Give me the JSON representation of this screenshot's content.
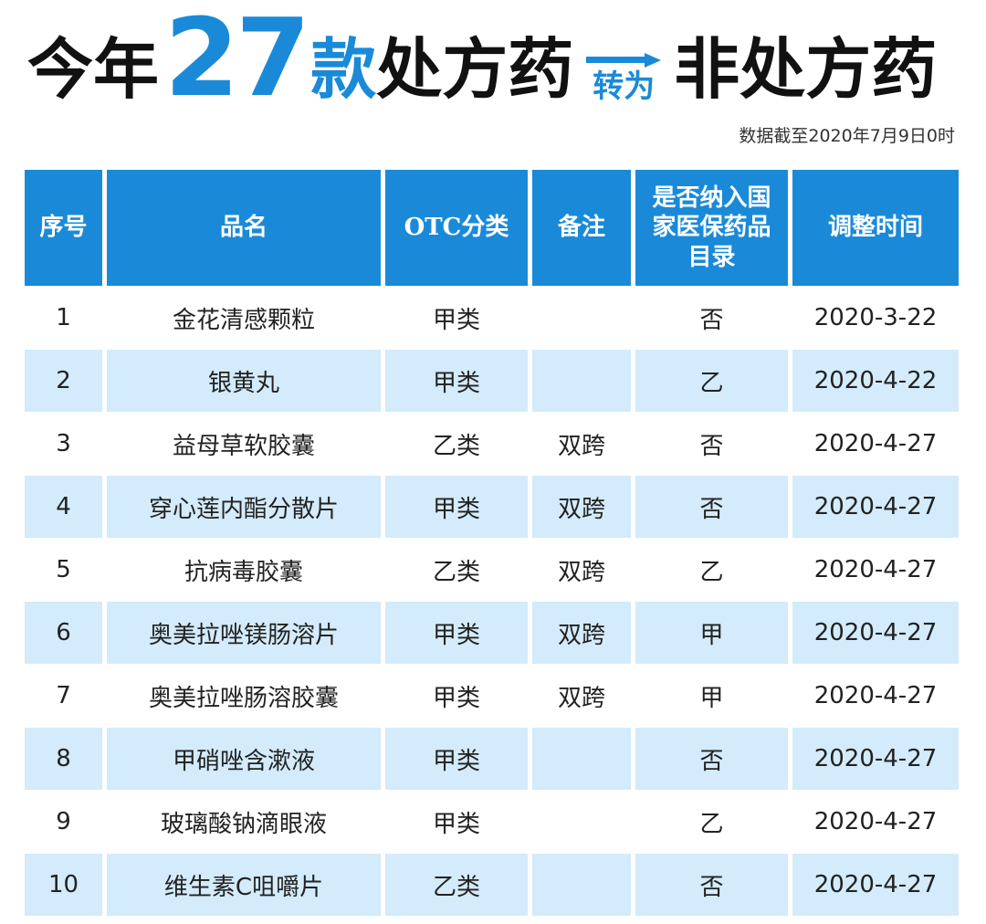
{
  "title": {
    "part1": "今年",
    "number": "27",
    "part2": "款",
    "part3": "处方药",
    "arrow_label": "转为",
    "part4": "非处方药"
  },
  "note": "数据截至2020年7月9日0时",
  "colors": {
    "accent": "#1a8ad8",
    "row_alt": "#d3ebfa"
  },
  "table": {
    "headers": [
      "序号",
      "品名",
      "OTC分类",
      "备注",
      "是否纳入国家医保药品目录",
      "调整时间"
    ],
    "rows": [
      [
        "1",
        "金花清感颗粒",
        "甲类",
        "",
        "否",
        "2020-3-22"
      ],
      [
        "2",
        "银黄丸",
        "甲类",
        "",
        "乙",
        "2020-4-22"
      ],
      [
        "3",
        "益母草软胶囊",
        "乙类",
        "双跨",
        "否",
        "2020-4-27"
      ],
      [
        "4",
        "穿心莲内酯分散片",
        "甲类",
        "双跨",
        "否",
        "2020-4-27"
      ],
      [
        "5",
        "抗病毒胶囊",
        "乙类",
        "双跨",
        "乙",
        "2020-4-27"
      ],
      [
        "6",
        "奥美拉唑镁肠溶片",
        "甲类",
        "双跨",
        "甲",
        "2020-4-27"
      ],
      [
        "7",
        "奥美拉唑肠溶胶囊",
        "甲类",
        "双跨",
        "甲",
        "2020-4-27"
      ],
      [
        "8",
        "甲硝唑含漱液",
        "甲类",
        "",
        "否",
        "2020-4-27"
      ],
      [
        "9",
        "玻璃酸钠滴眼液",
        "甲类",
        "",
        "乙",
        "2020-4-27"
      ],
      [
        "10",
        "维生素C咀嚼片",
        "乙类",
        "",
        "否",
        "2020-4-27"
      ]
    ]
  }
}
